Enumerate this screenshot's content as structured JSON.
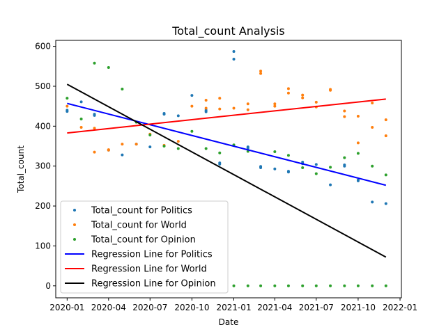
{
  "chart_data": {
    "type": "scatter",
    "title": "Total_count Analysis",
    "xlabel": "Date",
    "ylabel": "Total_count",
    "xlim": [
      "2019-12-07",
      "2022-01-04"
    ],
    "ylim": [
      -30,
      615
    ],
    "x_ticks": [
      "2020-01",
      "2020-04",
      "2020-07",
      "2020-10",
      "2021-01",
      "2021-04",
      "2021-07",
      "2021-10",
      "2022-01"
    ],
    "x_tick_values": [
      "2020-01-01",
      "2020-04-01",
      "2020-07-01",
      "2020-10-01",
      "2021-01-01",
      "2021-04-01",
      "2021-07-01",
      "2021-10-01",
      "2022-01-01"
    ],
    "y_ticks": [
      0,
      100,
      200,
      300,
      400,
      500,
      600
    ],
    "grid": false,
    "legend_position": "lower-left",
    "series": [
      {
        "name": "Total_count for Politics",
        "color": "#1f77b4",
        "marker": "point",
        "points": [
          [
            "2020-01-01",
            437
          ],
          [
            "2020-01-01",
            440
          ],
          [
            "2020-02-01",
            461
          ],
          [
            "2020-03-01",
            427
          ],
          [
            "2020-03-01",
            430
          ],
          [
            "2020-04-01",
            340
          ],
          [
            "2020-05-01",
            328
          ],
          [
            "2020-06-01",
            355
          ],
          [
            "2020-07-01",
            348
          ],
          [
            "2020-08-01",
            432
          ],
          [
            "2020-08-01",
            430
          ],
          [
            "2020-09-01",
            426
          ],
          [
            "2020-10-01",
            477
          ],
          [
            "2020-11-01",
            440
          ],
          [
            "2020-11-01",
            436
          ],
          [
            "2020-12-01",
            305
          ],
          [
            "2020-12-01",
            308
          ],
          [
            "2021-01-01",
            587
          ],
          [
            "2021-01-01",
            568
          ],
          [
            "2021-02-01",
            348
          ],
          [
            "2021-02-01",
            345
          ],
          [
            "2021-03-01",
            299
          ],
          [
            "2021-03-01",
            296
          ],
          [
            "2021-04-01",
            293
          ],
          [
            "2021-05-01",
            287
          ],
          [
            "2021-05-01",
            285
          ],
          [
            "2021-06-01",
            310
          ],
          [
            "2021-06-01",
            306
          ],
          [
            "2021-07-01",
            304
          ],
          [
            "2021-08-01",
            253
          ],
          [
            "2021-09-01",
            303
          ],
          [
            "2021-09-01",
            300
          ],
          [
            "2021-10-01",
            265
          ],
          [
            "2021-10-01",
            263
          ],
          [
            "2021-11-01",
            210
          ],
          [
            "2021-12-01",
            206
          ]
        ]
      },
      {
        "name": "Total_count for World",
        "color": "#ff7f0e",
        "marker": "point",
        "points": [
          [
            "2020-01-01",
            450
          ],
          [
            "2020-02-01",
            397
          ],
          [
            "2020-03-01",
            335
          ],
          [
            "2020-03-01",
            395
          ],
          [
            "2020-04-01",
            340
          ],
          [
            "2020-04-01",
            341
          ],
          [
            "2020-05-01",
            355
          ],
          [
            "2020-06-01",
            355
          ],
          [
            "2020-07-01",
            380
          ],
          [
            "2020-08-01",
            352
          ],
          [
            "2020-09-01",
            362
          ],
          [
            "2020-10-01",
            450
          ],
          [
            "2020-11-01",
            465
          ],
          [
            "2020-11-01",
            445
          ],
          [
            "2020-12-01",
            470
          ],
          [
            "2020-12-01",
            443
          ],
          [
            "2021-01-01",
            445
          ],
          [
            "2021-02-01",
            456
          ],
          [
            "2021-02-01",
            441
          ],
          [
            "2021-03-01",
            538
          ],
          [
            "2021-03-01",
            532
          ],
          [
            "2021-04-01",
            456
          ],
          [
            "2021-04-01",
            450
          ],
          [
            "2021-05-01",
            494
          ],
          [
            "2021-05-01",
            483
          ],
          [
            "2021-06-01",
            478
          ],
          [
            "2021-06-01",
            471
          ],
          [
            "2021-07-01",
            460
          ],
          [
            "2021-07-01",
            448
          ],
          [
            "2021-08-01",
            490
          ],
          [
            "2021-08-01",
            492
          ],
          [
            "2021-09-01",
            438
          ],
          [
            "2021-09-01",
            424
          ],
          [
            "2021-10-01",
            425
          ],
          [
            "2021-10-01",
            358
          ],
          [
            "2021-11-01",
            458
          ],
          [
            "2021-11-01",
            397
          ],
          [
            "2021-12-01",
            416
          ],
          [
            "2021-12-01",
            376
          ]
        ]
      },
      {
        "name": "Total_count for Opinion",
        "color": "#2ca02c",
        "marker": "point",
        "points": [
          [
            "2020-01-01",
            470
          ],
          [
            "2020-02-01",
            418
          ],
          [
            "2020-03-01",
            558
          ],
          [
            "2020-04-01",
            547
          ],
          [
            "2020-05-01",
            493
          ],
          [
            "2020-06-01",
            410
          ],
          [
            "2020-07-01",
            378
          ],
          [
            "2020-08-01",
            350
          ],
          [
            "2020-09-01",
            344
          ],
          [
            "2020-10-01",
            387
          ],
          [
            "2020-11-01",
            344
          ],
          [
            "2020-12-01",
            333
          ],
          [
            "2021-01-01",
            353
          ],
          [
            "2021-01-01",
            0
          ],
          [
            "2021-02-01",
            337
          ],
          [
            "2021-02-01",
            0
          ],
          [
            "2021-03-01",
            0
          ],
          [
            "2021-04-01",
            336
          ],
          [
            "2021-04-01",
            0
          ],
          [
            "2021-05-01",
            327
          ],
          [
            "2021-05-01",
            0
          ],
          [
            "2021-06-01",
            296
          ],
          [
            "2021-06-01",
            0
          ],
          [
            "2021-07-01",
            281
          ],
          [
            "2021-07-01",
            0
          ],
          [
            "2021-08-01",
            297
          ],
          [
            "2021-08-01",
            0
          ],
          [
            "2021-09-01",
            321
          ],
          [
            "2021-09-01",
            0
          ],
          [
            "2021-10-01",
            332
          ],
          [
            "2021-10-01",
            0
          ],
          [
            "2021-11-01",
            300
          ],
          [
            "2021-11-01",
            0
          ],
          [
            "2021-12-01",
            278
          ],
          [
            "2021-12-01",
            0
          ]
        ]
      }
    ],
    "regression_lines": [
      {
        "name": "Regression Line for Politics",
        "color": "#0000ff",
        "x": [
          "2020-01-01",
          "2021-12-01"
        ],
        "y": [
          457,
          252
        ]
      },
      {
        "name": "Regression Line for World",
        "color": "#ff0000",
        "x": [
          "2020-01-01",
          "2021-12-01"
        ],
        "y": [
          383,
          468
        ]
      },
      {
        "name": "Regression Line for Opinion",
        "color": "#000000",
        "x": [
          "2020-01-01",
          "2021-12-01"
        ],
        "y": [
          505,
          72
        ]
      }
    ]
  }
}
